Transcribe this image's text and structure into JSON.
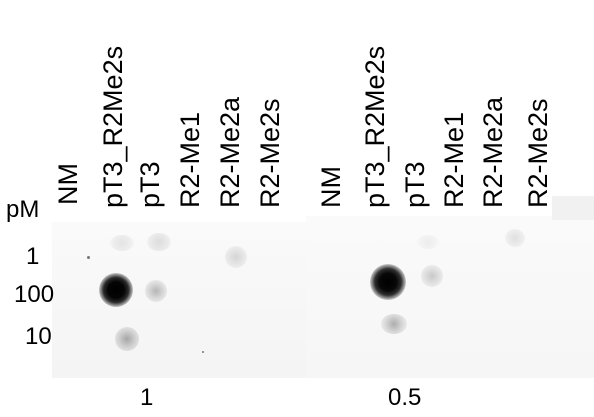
{
  "blot": {
    "unit_label": "pM",
    "row_labels": [
      "1",
      "100",
      "10"
    ],
    "lanes_left": [
      "NM",
      "pT3_R2Me2s",
      "pT3",
      "R2-Me1",
      "R2-Me2a",
      "R2-Me2s"
    ],
    "lanes_right": [
      "NM",
      "pT3_R2Me2s",
      "pT3",
      "R2-Me1",
      "R2-Me2a",
      "R2-Me2s"
    ],
    "dilution_left": "1",
    "dilution_right": "0.5"
  }
}
